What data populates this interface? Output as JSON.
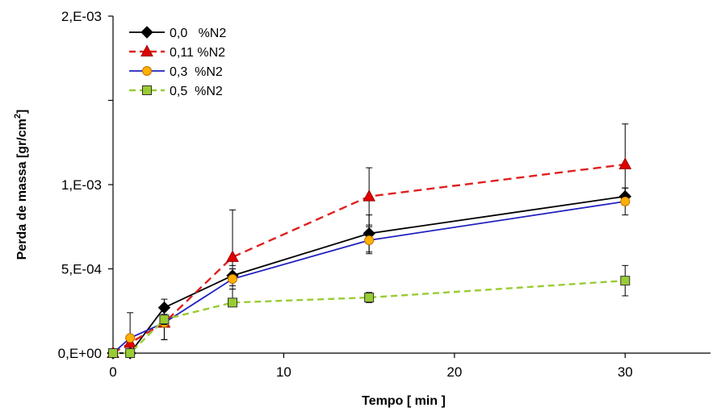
{
  "chart_data": {
    "type": "line",
    "xlabel": "Tempo [ min ]",
    "ylabel_main": "Perda de massa  [gr/cm",
    "ylabel_sup": "2",
    "ylabel_end": "]",
    "xlim": [
      0,
      35
    ],
    "ylim": [
      0,
      0.002
    ],
    "x_ticks": [
      0,
      10,
      20,
      30
    ],
    "x_tick_labels": [
      "0",
      "10",
      "20",
      "30"
    ],
    "y_ticks": [
      0,
      0.0005,
      0.001,
      0.0015,
      0.002
    ],
    "y_tick_labels": [
      "0,E+00",
      "5,E-04",
      "1,E-03",
      "",
      "2,E-03"
    ],
    "grid": false,
    "legend_position": "top-left",
    "series": [
      {
        "name": "0,0   %N2",
        "color": "#000000",
        "dash": "solid",
        "marker": "diamond",
        "marker_fill": "#000000",
        "x": [
          0,
          1,
          3,
          7,
          15,
          30
        ],
        "y": [
          0.0,
          0.0,
          0.00027,
          0.00046,
          0.00071,
          0.00093
        ],
        "err": [
          0.0,
          0.0,
          5e-05,
          6e-05,
          0.00011,
          5e-05
        ]
      },
      {
        "name": "0,11 %N2",
        "color": "#e02020",
        "dash": "dashed",
        "marker": "triangle",
        "marker_fill": "#e00000",
        "x": [
          0,
          1,
          3,
          7,
          15,
          30
        ],
        "y": [
          0.0,
          6e-05,
          0.00018,
          0.00057,
          0.00093,
          0.00112
        ],
        "err": [
          0.0,
          0.00018,
          0.0001,
          0.00028,
          0.00017,
          0.00024
        ]
      },
      {
        "name": "0,3  %N2",
        "color": "#2020c0",
        "dash": "solid",
        "marker": "circle",
        "marker_fill": "#ffb000",
        "x": [
          0,
          1,
          3,
          7,
          15,
          30
        ],
        "y": [
          0.0,
          9e-05,
          0.00018,
          0.00044,
          0.00067,
          0.0009
        ],
        "err": [
          0.0,
          0.0,
          0.0001,
          6e-05,
          8e-05,
          8e-05
        ]
      },
      {
        "name": "0,5  %N2",
        "color": "#99cc33",
        "dash": "dashed",
        "marker": "square",
        "marker_fill": "#99cc33",
        "x": [
          0,
          1,
          3,
          7,
          15,
          30
        ],
        "y": [
          0.0,
          0.0,
          0.0002,
          0.0003,
          0.00033,
          0.00043
        ],
        "err": [
          0.0,
          0.0,
          3e-05,
          2e-05,
          3e-05,
          9e-05
        ]
      }
    ]
  }
}
